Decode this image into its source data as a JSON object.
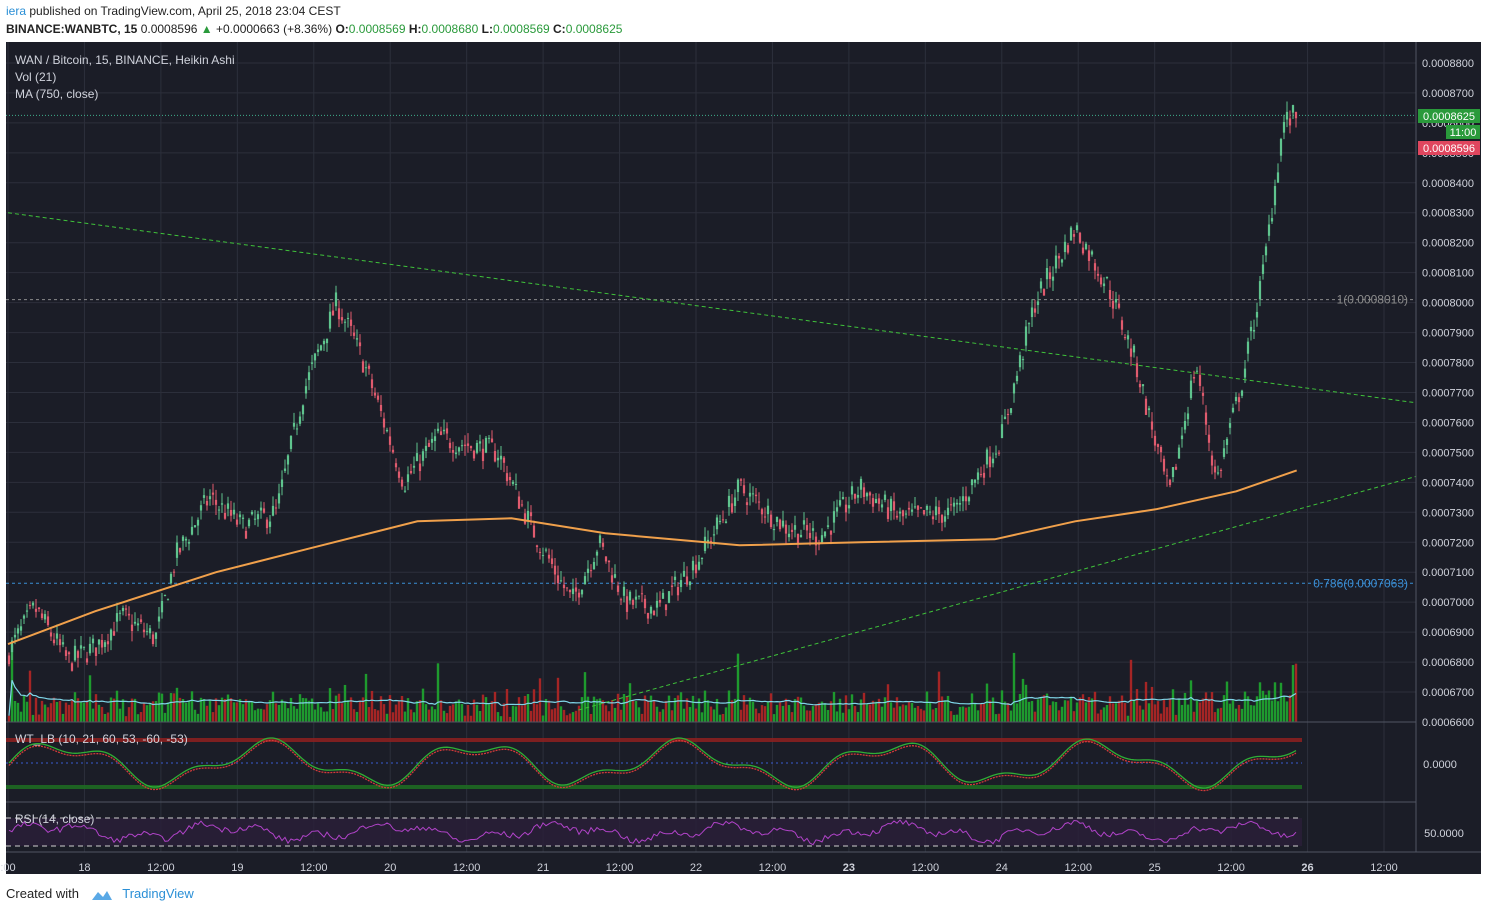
{
  "header": {
    "author": "iera",
    "published_text": "published on TradingView.com, April 25, 2018 23:04 CEST",
    "symbol": "BINANCE:WANBTC, 15",
    "last": "0.0008596",
    "change_arrow": "▲",
    "change": "+0.0000663 (+8.36%)",
    "o_label": "O:",
    "o": "0.0008569",
    "h_label": "H:",
    "h": "0.0008680",
    "l_label": "L:",
    "l": "0.0008569",
    "c_label": "C:",
    "c": "0.0008625"
  },
  "legend": {
    "title": "WAN / Bitcoin, 15, BINANCE, Heikin Ashi",
    "vol": "Vol (21)",
    "ma": "MA (750, close)",
    "wt": "WT_LB (10, 21, 60, 53, -60, -53)",
    "rsi": "RSI (14, close)"
  },
  "price_axis": {
    "ticks": [
      "0.0008800",
      "0.0008700",
      "0.0008600",
      "0.0008500",
      "0.0008400",
      "0.0008300",
      "0.0008200",
      "0.0008100",
      "0.0008000",
      "0.0007900",
      "0.0007800",
      "0.0007700",
      "0.0007600",
      "0.0007500",
      "0.0007400",
      "0.0007300",
      "0.0007200",
      "0.0007100",
      "0.0007000",
      "0.0006900",
      "0.0006800",
      "0.0006700",
      "0.0006600"
    ],
    "current_price_label": "0.0008625",
    "countdown_label": "11:00",
    "last_price_label": "0.0008596",
    "wt_tick": "0.0000",
    "rsi_tick": "50.0000"
  },
  "time_axis": {
    "labels": [
      ":00",
      "18",
      "12:00",
      "19",
      "12:00",
      "20",
      "12:00",
      "21",
      "12:00",
      "22",
      "12:00",
      "23",
      "12:00",
      "24",
      "12:00",
      "25",
      "12:00",
      "26",
      "12:00"
    ],
    "bold_labels": [
      "23",
      "26"
    ]
  },
  "fib_levels": [
    {
      "label": "1(0.0008010)",
      "value": 0.000801,
      "color": "#8a8a8a"
    },
    {
      "label": "0.786(0.0007063)",
      "value": 0.0007063,
      "color": "#3b8fd6"
    }
  ],
  "colors": {
    "background": "#1b1d27",
    "grid": "#2c2f3b",
    "up": "#5fc48e",
    "down": "#e05b6e",
    "ma": "#f0a04b",
    "trend": "#3fc23a",
    "vol_up": "#1e9a2e",
    "vol_down": "#a52525",
    "vol_ma": "#7fd6e8",
    "rsi": "#b043c8",
    "price_label_green": "#2a9a3b",
    "price_label_red": "#e0465e"
  },
  "chart_data": {
    "type": "candlestick",
    "title": "WAN / Bitcoin, 15, BINANCE, Heikin Ashi",
    "x_range": [
      "2018-04-17 23:00",
      "2018-04-26 12:00"
    ],
    "y_range": [
      0.00066,
      0.000887
    ],
    "price_path": [
      [
        "2018-04-17 23:00",
        0.000683
      ],
      [
        "2018-04-18 03:00",
        0.000698
      ],
      [
        "2018-04-18 08:00",
        0.00068
      ],
      [
        "2018-04-18 12:00",
        0.000685
      ],
      [
        "2018-04-18 16:00",
        0.000695
      ],
      [
        "2018-04-18 21:00",
        0.000688
      ],
      [
        "2018-04-19 00:00",
        0.000715
      ],
      [
        "2018-04-19 05:00",
        0.000735
      ],
      [
        "2018-04-19 10:00",
        0.000725
      ],
      [
        "2018-04-19 15:00",
        0.00073
      ],
      [
        "2018-04-19 19:00",
        0.00077
      ],
      [
        "2018-04-20 00:00",
        0.0008
      ],
      [
        "2018-04-20 04:00",
        0.00078
      ],
      [
        "2018-04-20 10:00",
        0.00074
      ],
      [
        "2018-04-20 15:00",
        0.000755
      ],
      [
        "2018-04-21 00:00",
        0.00075
      ],
      [
        "2018-04-21 05:00",
        0.000725
      ],
      [
        "2018-04-21 11:00",
        0.0007
      ],
      [
        "2018-04-21 15:00",
        0.00072
      ],
      [
        "2018-04-21 19:00",
        0.0007
      ],
      [
        "2018-04-22 00:00",
        0.000698
      ],
      [
        "2018-04-22 06:00",
        0.000715
      ],
      [
        "2018-04-22 12:00",
        0.000738
      ],
      [
        "2018-04-22 19:00",
        0.000725
      ],
      [
        "2018-04-23 00:00",
        0.000722
      ],
      [
        "2018-04-23 06:00",
        0.000738
      ],
      [
        "2018-04-23 12:00",
        0.000728
      ],
      [
        "2018-04-23 20:00",
        0.00073
      ],
      [
        "2018-04-24 03:00",
        0.000755
      ],
      [
        "2018-04-24 08:00",
        0.0008
      ],
      [
        "2018-04-24 14:00",
        0.000825
      ],
      [
        "2018-04-24 19:00",
        0.000805
      ],
      [
        "2018-04-24 23:00",
        0.00078
      ],
      [
        "2018-04-25 04:00",
        0.000735
      ],
      [
        "2018-04-25 08:00",
        0.00078
      ],
      [
        "2018-04-25 11:00",
        0.00074
      ],
      [
        "2018-04-25 15:00",
        0.000775
      ],
      [
        "2018-04-25 18:00",
        0.00081
      ],
      [
        "2018-04-25 21:00",
        0.00086
      ],
      [
        "2018-04-25 23:00",
        0.0008625
      ]
    ],
    "ma_750": [
      [
        "2018-04-17 23:00",
        0.000686
      ],
      [
        "2018-04-18 12:00",
        0.000697
      ],
      [
        "2018-04-19 06:00",
        0.00071
      ],
      [
        "2018-04-19 20:00",
        0.000718
      ],
      [
        "2018-04-20 12:00",
        0.000727
      ],
      [
        "2018-04-21 02:00",
        0.000728
      ],
      [
        "2018-04-21 16:00",
        0.000723
      ],
      [
        "2018-04-22 12:00",
        0.000719
      ],
      [
        "2018-04-23 06:00",
        0.00072
      ],
      [
        "2018-04-24 02:00",
        0.000721
      ],
      [
        "2018-04-24 14:00",
        0.000727
      ],
      [
        "2018-04-25 02:00",
        0.000731
      ],
      [
        "2018-04-25 14:00",
        0.000737
      ],
      [
        "2018-04-25 23:00",
        0.000744
      ]
    ],
    "trendlines": [
      {
        "from": [
          "2018-04-17 23:00",
          0.00083
        ],
        "to": [
          "2018-04-26 12:00",
          0.000768
        ]
      },
      {
        "from": [
          "2018-04-21 12:00",
          0.000664
        ],
        "to": [
          "2018-04-26 12:00",
          0.000739
        ]
      }
    ],
    "indicators": [
      "Vol (21)",
      "MA (750, close)",
      "WT_LB (10, 21, 60, 53, -60, -53)",
      "RSI (14, close)"
    ]
  }
}
